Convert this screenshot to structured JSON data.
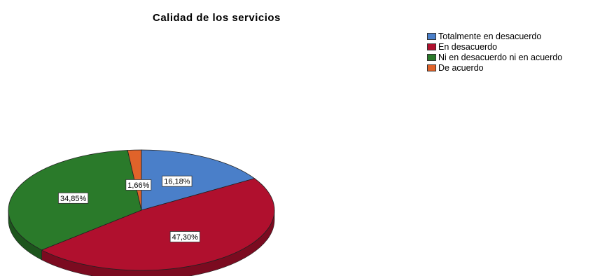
{
  "chart_data": {
    "type": "pie",
    "title": "Calidad de los servicios",
    "legend_position": "top-right",
    "slices": [
      {
        "name": "Totalmente en desacuerdo",
        "value": 16.18,
        "label": "16,18%",
        "color": "#4a7fc9"
      },
      {
        "name": "En desacuerdo",
        "value": 47.3,
        "label": "47,30%",
        "color": "#b0102e"
      },
      {
        "name": "Ni en desacuerdo ni en acuerdo",
        "value": 34.85,
        "label": "34,85%",
        "color": "#2a7a2a"
      },
      {
        "name": "De acuerdo",
        "value": 1.66,
        "label": "1,66%",
        "color": "#e0632a"
      }
    ]
  }
}
